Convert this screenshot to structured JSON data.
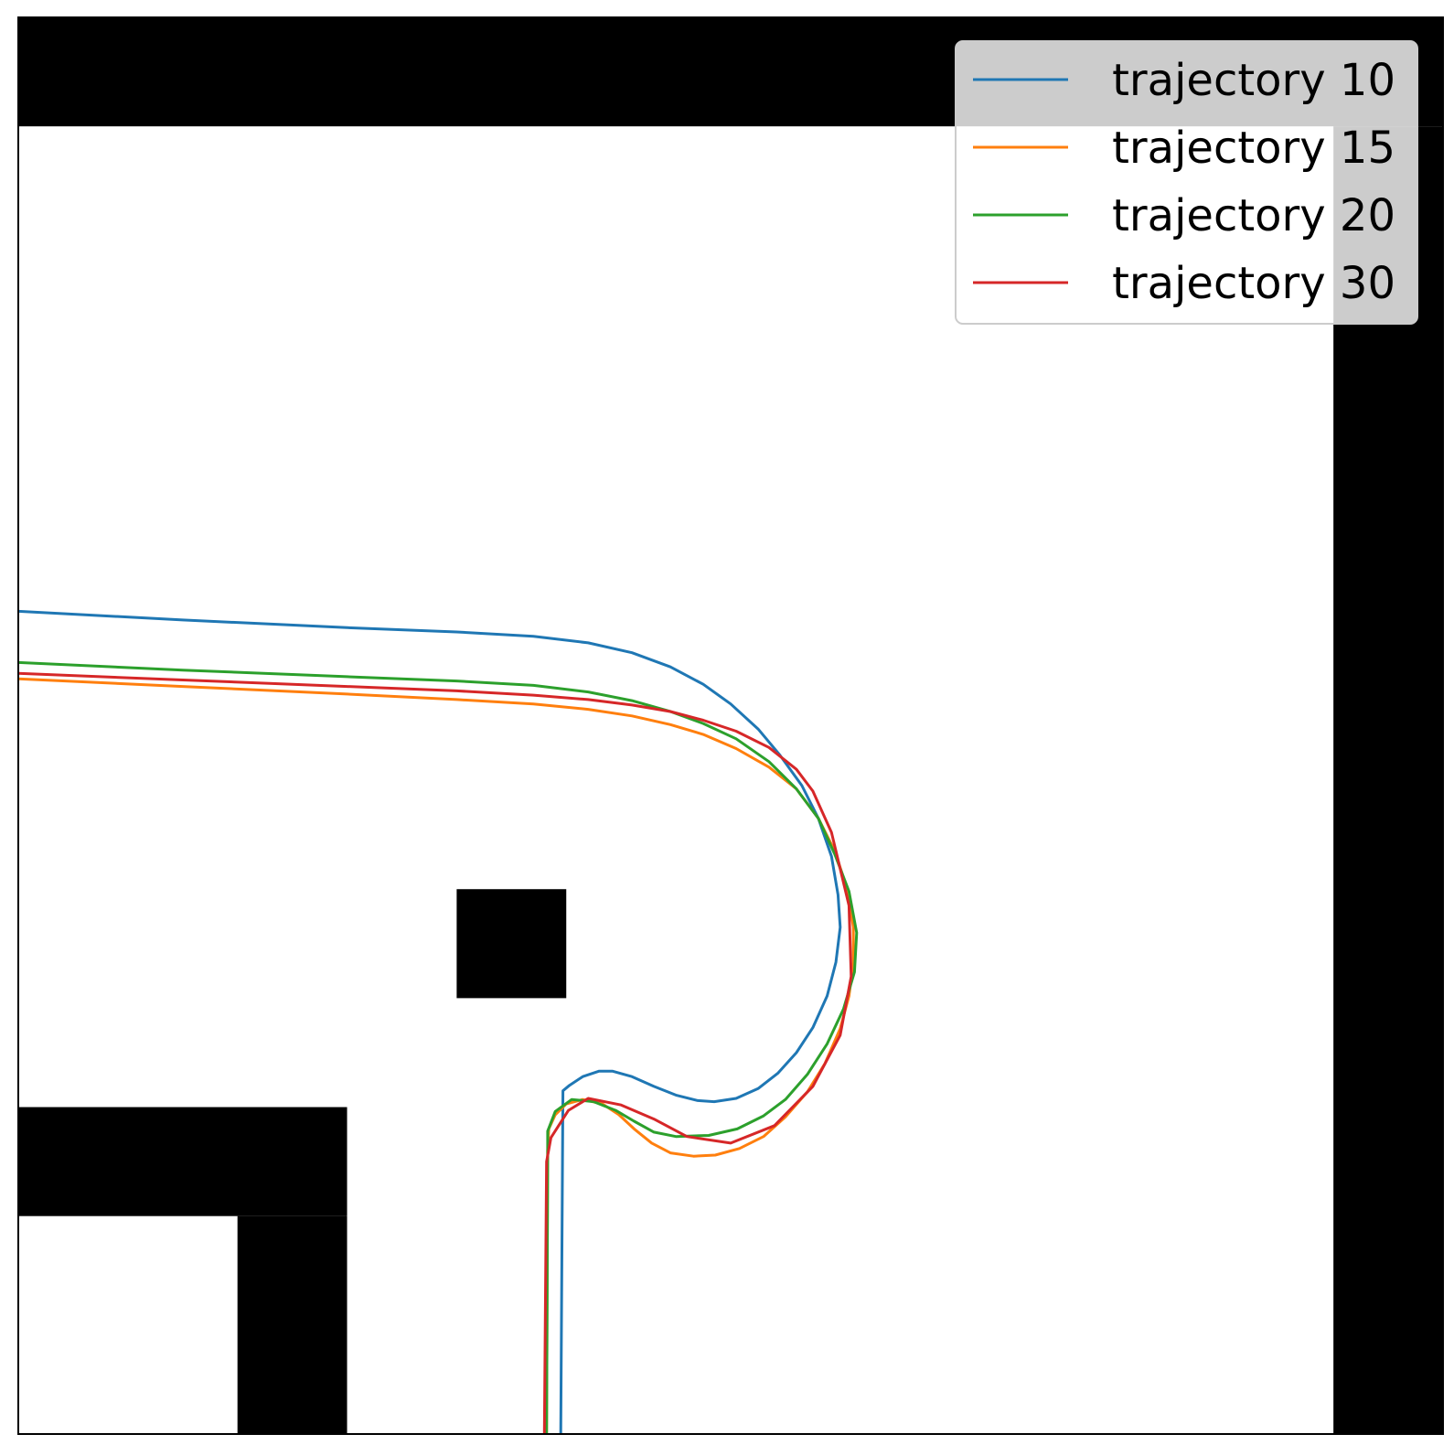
{
  "chart_data": {
    "type": "line",
    "title": "",
    "xlabel": "",
    "ylabel": "",
    "xlim": [
      0,
      13
    ],
    "ylim": [
      0,
      13
    ],
    "grid": false,
    "legend_position": "top-right",
    "obstacles": [
      {
        "name": "top-wall",
        "x": [
          0,
          13
        ],
        "y": [
          12,
          13
        ]
      },
      {
        "name": "right-wall",
        "x": [
          12,
          13
        ],
        "y": [
          0,
          12
        ]
      },
      {
        "name": "center-block",
        "x": [
          4,
          5
        ],
        "y": [
          4,
          5
        ]
      },
      {
        "name": "lower-left-horizontal",
        "x": [
          0,
          3
        ],
        "y": [
          2,
          3
        ]
      },
      {
        "name": "lower-left-vertical",
        "x": [
          2,
          3
        ],
        "y": [
          0,
          2
        ]
      }
    ],
    "series": [
      {
        "name": "trajectory 10",
        "color": "#1f77b4",
        "points": [
          [
            0,
            7.55
          ],
          [
            1.5,
            7.47
          ],
          [
            3,
            7.4
          ],
          [
            4,
            7.36
          ],
          [
            4.7,
            7.32
          ],
          [
            5.2,
            7.26
          ],
          [
            5.6,
            7.17
          ],
          [
            5.95,
            7.04
          ],
          [
            6.25,
            6.88
          ],
          [
            6.5,
            6.7
          ],
          [
            6.75,
            6.47
          ],
          [
            6.95,
            6.23
          ],
          [
            7.15,
            5.95
          ],
          [
            7.3,
            5.65
          ],
          [
            7.42,
            5.3
          ],
          [
            7.48,
            4.95
          ],
          [
            7.5,
            4.65
          ],
          [
            7.46,
            4.33
          ],
          [
            7.38,
            4.02
          ],
          [
            7.25,
            3.73
          ],
          [
            7.1,
            3.5
          ],
          [
            6.93,
            3.31
          ],
          [
            6.75,
            3.17
          ],
          [
            6.55,
            3.08
          ],
          [
            6.35,
            3.05
          ],
          [
            6.2,
            3.06
          ],
          [
            6.0,
            3.11
          ],
          [
            5.8,
            3.19
          ],
          [
            5.6,
            3.28
          ],
          [
            5.42,
            3.33
          ],
          [
            5.3,
            3.33
          ],
          [
            5.15,
            3.28
          ],
          [
            5.03,
            3.2
          ],
          [
            4.97,
            3.15
          ],
          [
            4.95,
            0
          ]
        ]
      },
      {
        "name": "trajectory 15",
        "color": "#ff7f0e",
        "points": [
          [
            0,
            6.93
          ],
          [
            1.5,
            6.86
          ],
          [
            3,
            6.79
          ],
          [
            4,
            6.74
          ],
          [
            4.7,
            6.7
          ],
          [
            5.2,
            6.65
          ],
          [
            5.6,
            6.59
          ],
          [
            5.95,
            6.51
          ],
          [
            6.25,
            6.42
          ],
          [
            6.55,
            6.29
          ],
          [
            6.85,
            6.12
          ],
          [
            7.1,
            5.92
          ],
          [
            7.3,
            5.65
          ],
          [
            7.45,
            5.35
          ],
          [
            7.57,
            4.98
          ],
          [
            7.62,
            4.65
          ],
          [
            7.62,
            4.33
          ],
          [
            7.58,
            4.02
          ],
          [
            7.5,
            3.72
          ],
          [
            7.36,
            3.4
          ],
          [
            7.2,
            3.14
          ],
          [
            7.0,
            2.91
          ],
          [
            6.8,
            2.73
          ],
          [
            6.58,
            2.62
          ],
          [
            6.36,
            2.56
          ],
          [
            6.16,
            2.55
          ],
          [
            5.95,
            2.58
          ],
          [
            5.78,
            2.67
          ],
          [
            5.62,
            2.8
          ],
          [
            5.48,
            2.93
          ],
          [
            5.33,
            3.03
          ],
          [
            5.15,
            3.07
          ],
          [
            5.0,
            3.03
          ],
          [
            4.9,
            2.93
          ],
          [
            4.84,
            2.8
          ],
          [
            4.83,
            2.6
          ],
          [
            4.82,
            0
          ]
        ]
      },
      {
        "name": "trajectory 20",
        "color": "#2ca02c",
        "points": [
          [
            0,
            7.08
          ],
          [
            1.5,
            7.01
          ],
          [
            3,
            6.95
          ],
          [
            4,
            6.91
          ],
          [
            4.7,
            6.87
          ],
          [
            5.2,
            6.81
          ],
          [
            5.6,
            6.73
          ],
          [
            5.95,
            6.63
          ],
          [
            6.25,
            6.52
          ],
          [
            6.55,
            6.38
          ],
          [
            6.85,
            6.17
          ],
          [
            7.1,
            5.92
          ],
          [
            7.3,
            5.65
          ],
          [
            7.45,
            5.32
          ],
          [
            7.58,
            4.98
          ],
          [
            7.65,
            4.6
          ],
          [
            7.63,
            4.24
          ],
          [
            7.53,
            3.9
          ],
          [
            7.38,
            3.58
          ],
          [
            7.2,
            3.3
          ],
          [
            7.0,
            3.07
          ],
          [
            6.8,
            2.92
          ],
          [
            6.56,
            2.8
          ],
          [
            6.3,
            2.74
          ],
          [
            6.0,
            2.73
          ],
          [
            5.8,
            2.77
          ],
          [
            5.62,
            2.87
          ],
          [
            5.45,
            2.97
          ],
          [
            5.25,
            3.05
          ],
          [
            5.05,
            3.07
          ],
          [
            4.9,
            2.96
          ],
          [
            4.83,
            2.78
          ],
          [
            4.83,
            2.5
          ],
          [
            4.82,
            0
          ]
        ]
      },
      {
        "name": "trajectory 30",
        "color": "#d62728",
        "points": [
          [
            0,
            6.98
          ],
          [
            1.5,
            6.92
          ],
          [
            3,
            6.86
          ],
          [
            4,
            6.82
          ],
          [
            4.7,
            6.78
          ],
          [
            5.2,
            6.74
          ],
          [
            5.6,
            6.69
          ],
          [
            5.95,
            6.63
          ],
          [
            6.25,
            6.55
          ],
          [
            6.55,
            6.45
          ],
          [
            6.85,
            6.3
          ],
          [
            7.1,
            6.1
          ],
          [
            7.25,
            5.9
          ],
          [
            7.42,
            5.52
          ],
          [
            7.58,
            4.85
          ],
          [
            7.6,
            4.2
          ],
          [
            7.5,
            3.66
          ],
          [
            7.25,
            3.19
          ],
          [
            6.9,
            2.83
          ],
          [
            6.5,
            2.67
          ],
          [
            6.1,
            2.73
          ],
          [
            5.8,
            2.89
          ],
          [
            5.5,
            3.02
          ],
          [
            5.2,
            3.08
          ],
          [
            5.02,
            2.97
          ],
          [
            4.86,
            2.72
          ],
          [
            4.82,
            2.5
          ],
          [
            4.8,
            0
          ]
        ]
      }
    ]
  }
}
